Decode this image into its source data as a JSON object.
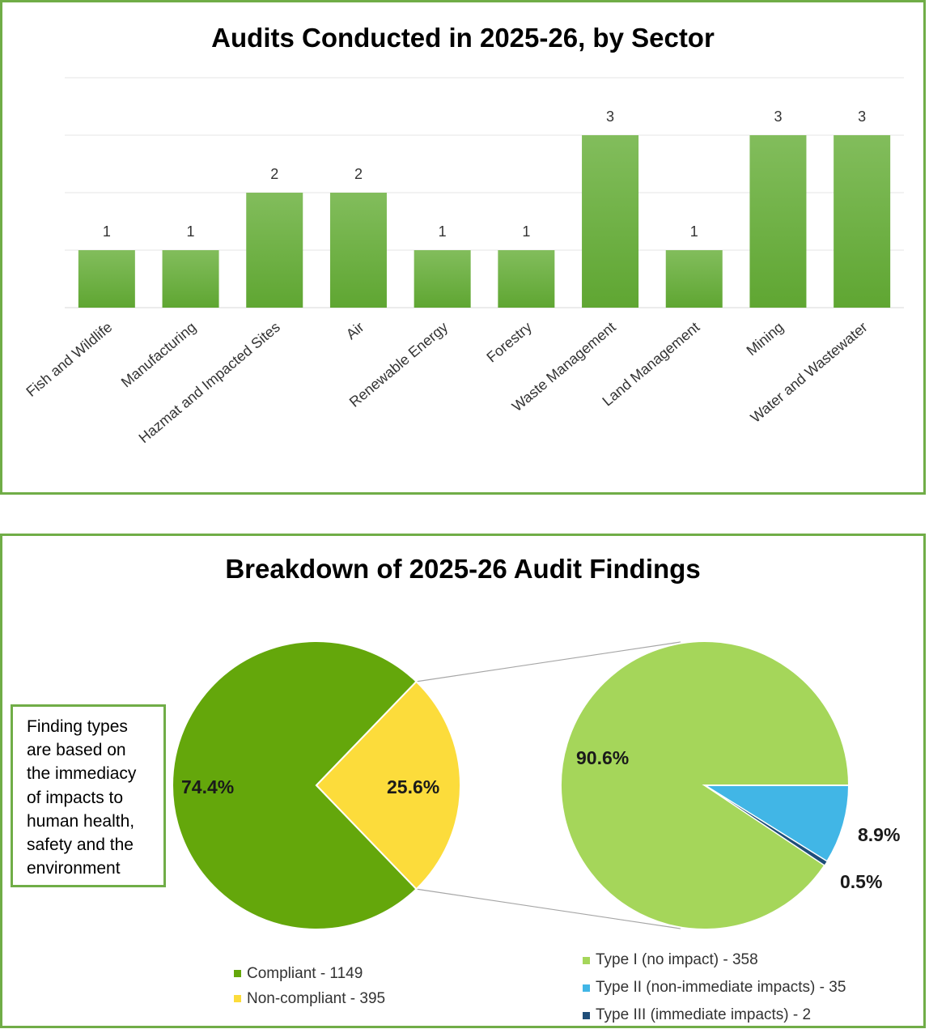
{
  "colors": {
    "border": "#70ad47",
    "bar": "#6cb043",
    "compliant": "#64a70b",
    "non_compliant": "#fcdc3b",
    "type1": "#a5d65a",
    "type2": "#41b6e6",
    "type3": "#1f4e79"
  },
  "chart_data": [
    {
      "type": "bar",
      "title": "Audits Conducted in 2025-26, by Sector",
      "categories": [
        "Fish and Wildlife",
        "Manufacturing",
        "Hazmat and Impacted Sites",
        "Air",
        "Renewable Energy",
        "Forestry",
        "Waste Management",
        "Land Management",
        "Mining",
        "Water and Wastewater"
      ],
      "values": [
        1,
        1,
        2,
        2,
        1,
        1,
        3,
        1,
        3,
        3
      ],
      "data_labels": [
        "1",
        "1",
        "2",
        "2",
        "1",
        "1",
        "3",
        "1",
        "3",
        "3"
      ],
      "ylim": [
        0,
        4
      ],
      "grid": true,
      "xlabel": "",
      "ylabel": ""
    },
    {
      "type": "pie",
      "title": "Breakdown of 2025-26 Audit Findings",
      "slices": [
        {
          "label": "Compliant - 1149",
          "value": 1149,
          "percent_label": "74.4%"
        },
        {
          "label": "Non-compliant - 395",
          "value": 395,
          "percent_label": "25.6%"
        }
      ]
    },
    {
      "type": "pie",
      "slices": [
        {
          "label": "Type I (no impact) - 358",
          "value": 358,
          "percent_label": "90.6%"
        },
        {
          "label": "Type II (non-immediate impacts) - 35",
          "value": 35,
          "percent_label": "8.9%"
        },
        {
          "label": "Type III (immediate impacts) - 2",
          "value": 2,
          "percent_label": "0.5%"
        }
      ]
    }
  ],
  "note": {
    "lines": [
      "Finding types",
      "are based on",
      "the immediacy",
      "of impacts to",
      "human health,",
      "safety and the",
      "environment"
    ]
  }
}
